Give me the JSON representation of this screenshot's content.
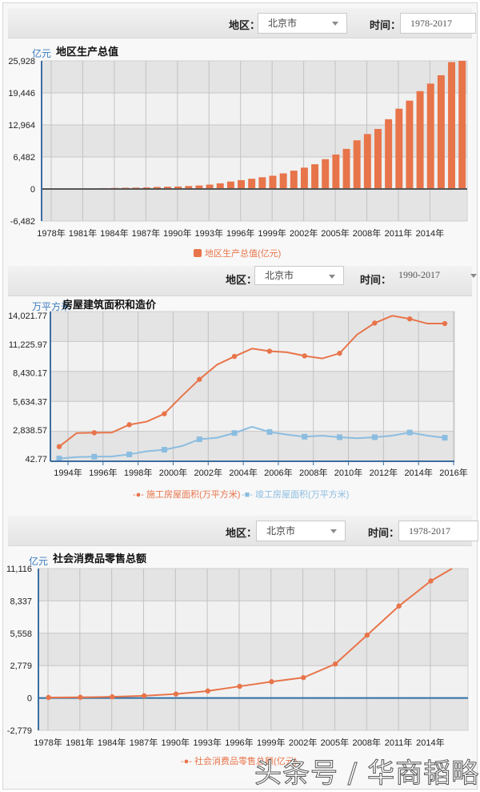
{
  "panels": [
    {
      "filters": {
        "region_label": "地区：",
        "region_value": "北京市",
        "time_label": "时间：",
        "time_value": "1978-2017"
      },
      "title": "地区生产总值",
      "unit": "亿元",
      "legend": [
        "地区生产总值(亿元)"
      ]
    },
    {
      "filters": {
        "region_label": "地区：",
        "region_value": "北京市",
        "time_label": "时间：",
        "time_value": "1990-2017"
      },
      "title": "房屋建筑面积和造价",
      "unit": "万平方米",
      "legend": [
        "施工房屋面积(万平方米)",
        "竣工房屋面积(万平方米)"
      ]
    },
    {
      "filters": {
        "region_label": "地区：",
        "region_value": "北京市",
        "time_label": "时间：",
        "time_value": "1978-2017"
      },
      "title": "社会消费品零售总额",
      "unit": "亿元",
      "legend": [
        "社会消费品零售总额(亿元)"
      ]
    }
  ],
  "watermark": "头条号 / 华商韬略",
  "colors": {
    "orange": "#e8744a",
    "blue": "#8bbde0",
    "axis": "#3d6ea0"
  },
  "chart_data": [
    {
      "type": "bar",
      "title": "地区生产总值",
      "ylabel": "亿元",
      "xlabel": "",
      "ylim": [
        -6482,
        25928
      ],
      "yticks": [
        "25,928",
        "19,446",
        "12,964",
        "6,482",
        "0",
        "-6,482"
      ],
      "xticks": [
        "1978年",
        "1981年",
        "1984年",
        "1987年",
        "1990年",
        "1993年",
        "1996年",
        "1999年",
        "2002年",
        "2005年",
        "2008年",
        "2011年",
        "2014年"
      ],
      "categories": [
        "1978",
        "1979",
        "1980",
        "1981",
        "1982",
        "1983",
        "1984",
        "1985",
        "1986",
        "1987",
        "1988",
        "1989",
        "1990",
        "1991",
        "1992",
        "1993",
        "1994",
        "1995",
        "1996",
        "1997",
        "1998",
        "1999",
        "2000",
        "2001",
        "2002",
        "2003",
        "2004",
        "2005",
        "2006",
        "2007",
        "2008",
        "2009",
        "2010",
        "2011",
        "2012",
        "2013",
        "2014",
        "2015",
        "2016",
        "2017"
      ],
      "series": [
        {
          "name": "地区生产总值(亿元)",
          "values": [
            109,
            120,
            139,
            139,
            155,
            183,
            217,
            257,
            285,
            327,
            411,
            456,
            501,
            599,
            709,
            886,
            1145,
            1507,
            1789,
            2076,
            2377,
            2678,
            3162,
            3708,
            4315,
            5007,
            6033,
            6970,
            8118,
            9847,
            11115,
            12153,
            14114,
            16252,
            17879,
            19801,
            21331,
            23015,
            25669,
            28015
          ]
        }
      ],
      "legend_position": "bottom",
      "grid": true
    },
    {
      "type": "line",
      "title": "房屋建筑面积和造价",
      "ylabel": "万平方米",
      "ylim": [
        42.77,
        14021.77
      ],
      "yticks": [
        "14,021.77",
        "11,225.97",
        "8,430.17",
        "5,634.37",
        "2,838.57",
        "42.77"
      ],
      "xticks": [
        "1994年",
        "1996年",
        "1998年",
        "2000年",
        "2002年",
        "2004年",
        "2006年",
        "2008年",
        "2010年",
        "2012年",
        "2014年",
        "2016年"
      ],
      "x": [
        "1994",
        "1995",
        "1996",
        "1997",
        "1998",
        "1999",
        "2000",
        "2001",
        "2002",
        "2003",
        "2004",
        "2005",
        "2006",
        "2007",
        "2008",
        "2009",
        "2010",
        "2011",
        "2012",
        "2013",
        "2014",
        "2015",
        "2016"
      ],
      "series": [
        {
          "name": "施工房屋面积(万平方米)",
          "values": [
            1450,
            2750,
            2780,
            2800,
            3550,
            3850,
            4600,
            6300,
            7900,
            9300,
            10100,
            10850,
            10600,
            10500,
            10150,
            9900,
            10400,
            12200,
            13300,
            14000,
            13700,
            13250,
            13250
          ]
        },
        {
          "name": "竣工房屋面积(万平方米)",
          "values": [
            300,
            450,
            480,
            500,
            700,
            1000,
            1150,
            1500,
            2150,
            2300,
            2750,
            3350,
            2850,
            2600,
            2400,
            2500,
            2350,
            2250,
            2350,
            2500,
            2800,
            2500,
            2300
          ]
        }
      ],
      "legend_position": "bottom",
      "grid": true
    },
    {
      "type": "line",
      "title": "社会消费品零售总额",
      "ylabel": "亿元",
      "ylim": [
        -2779,
        11116
      ],
      "yticks": [
        "11,116",
        "8,337",
        "5,558",
        "2,779",
        "0",
        "-2,779"
      ],
      "xticks": [
        "1978年",
        "1981年",
        "1984年",
        "1987年",
        "1990年",
        "1993年",
        "1996年",
        "1999年",
        "2002年",
        "2005年",
        "2008年",
        "2011年",
        "2014年"
      ],
      "x": [
        "1978",
        "1981",
        "1984",
        "1987",
        "1990",
        "1993",
        "1996",
        "1999",
        "2002",
        "2005",
        "2008",
        "2011",
        "2014",
        "2016"
      ],
      "series": [
        {
          "name": "社会消费品零售总额(亿元)",
          "values": [
            45,
            60,
            100,
            190,
            340,
            600,
            1000,
            1400,
            1750,
            2920,
            5400,
            7900,
            10050,
            11116
          ]
        }
      ],
      "legend_position": "bottom",
      "grid": true
    }
  ]
}
